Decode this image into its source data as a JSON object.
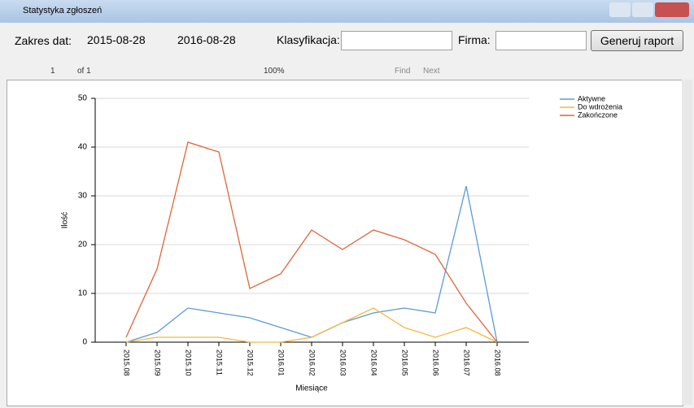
{
  "window": {
    "title": "Statystyka zgłoszeń"
  },
  "toolbar": {
    "date_label": "Zakres dat:",
    "date_from": "2015-08-28",
    "date_to": "2016-08-28",
    "class_label": "Klasyfikacja:",
    "company_label": "Firma:",
    "button": "Generuj raport"
  },
  "report_toolbar": {
    "page": "1",
    "of": "of 1",
    "zoom": "100%",
    "find": "Find",
    "next": "Next"
  },
  "chart_data": {
    "type": "line",
    "x_label": "Miesiące",
    "y_label": "Ilość",
    "categories": [
      "2015.08",
      "2015.09",
      "2015.10",
      "2015.11",
      "2015.12",
      "2016.01",
      "2016.02",
      "2016.03",
      "2016.04",
      "2016.05",
      "2016.06",
      "2016.07",
      "2016.08"
    ],
    "series": [
      {
        "name": "Aktywne",
        "color": "#5b9bd5",
        "values": [
          0,
          2,
          7,
          6,
          5,
          3,
          1,
          4,
          6,
          7,
          6,
          32,
          0
        ]
      },
      {
        "name": "Do wdrożenia",
        "color": "#f4b942",
        "values": [
          0,
          1,
          1,
          1,
          0,
          0,
          1,
          4,
          7,
          3,
          1,
          3,
          0
        ]
      },
      {
        "name": "Zakończone",
        "color": "#e0643c",
        "values": [
          1,
          15,
          41,
          39,
          11,
          14,
          23,
          19,
          23,
          21,
          18,
          8,
          0
        ]
      }
    ],
    "ylim": [
      0,
      50
    ],
    "yticks": [
      0,
      10,
      20,
      30,
      40,
      50
    ],
    "grid": true,
    "legend": "top-right"
  }
}
